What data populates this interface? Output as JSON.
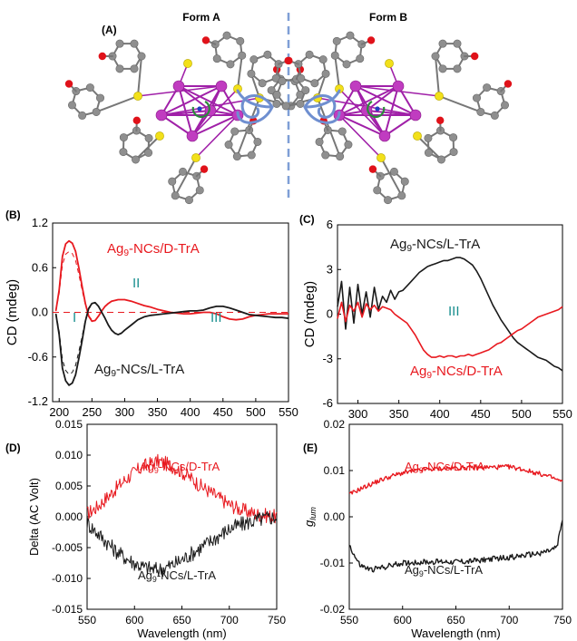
{
  "figure": {
    "panel_labels": [
      "(A)",
      "(B)",
      "(C)",
      "(D)",
      "(E)"
    ],
    "form_a_label": "Form A",
    "form_b_label": "Form B",
    "colors": {
      "red": "#e8191f",
      "black": "#1a1a1a",
      "teal": "#1a8f8f",
      "divider": "#7f9fd6",
      "carbon": "#8f8f8f",
      "oxygen": "#e0121a",
      "sulfur": "#f2e01a",
      "silver": "#c03cc0",
      "bond": "#a020a8"
    }
  },
  "chart_data": [
    {
      "id": "B",
      "type": "line",
      "xlabel": "",
      "ylabel": "CD (mdeg)",
      "xlim": [
        190,
        550
      ],
      "ylim": [
        -1.2,
        1.2
      ],
      "xticks": [
        "200",
        "250",
        "300",
        "350",
        "400",
        "450",
        "500",
        "550"
      ],
      "yticks": [
        "1.2",
        "0.6",
        "0.0",
        "-0.6",
        "-1.2"
      ],
      "annotations": [
        "I",
        "II",
        "III"
      ],
      "series": [
        {
          "name": "Ag9-NCs/D-TrA",
          "name_main": "Ag",
          "name_sub": "9",
          "name_rest": "-NCs/D-TrA",
          "color": "#e8191f",
          "x": [
            195,
            200,
            205,
            210,
            215,
            220,
            225,
            230,
            235,
            240,
            245,
            250,
            255,
            260,
            265,
            270,
            275,
            280,
            285,
            290,
            295,
            300,
            310,
            320,
            330,
            340,
            350,
            360,
            370,
            380,
            390,
            400,
            410,
            420,
            430,
            440,
            450,
            460,
            470,
            480,
            490,
            500,
            510,
            520,
            530,
            540,
            550
          ],
          "y": [
            0.02,
            0.3,
            0.75,
            0.92,
            0.96,
            0.93,
            0.82,
            0.6,
            0.35,
            0.12,
            -0.05,
            -0.12,
            -0.11,
            -0.05,
            0.02,
            0.08,
            0.12,
            0.15,
            0.16,
            0.17,
            0.17,
            0.17,
            0.15,
            0.12,
            0.09,
            0.07,
            0.04,
            0.02,
            0.0,
            -0.01,
            -0.02,
            -0.02,
            -0.01,
            0.0,
            0.0,
            -0.02,
            -0.06,
            -0.09,
            -0.1,
            -0.09,
            -0.06,
            -0.04,
            -0.03,
            -0.02,
            -0.02,
            -0.02,
            -0.02
          ]
        },
        {
          "name": "Ag9-NCs/L-TrA",
          "name_main": "Ag",
          "name_sub": "9",
          "name_rest": "-NCs/L-TrA",
          "color": "#1a1a1a",
          "x": [
            195,
            200,
            205,
            210,
            215,
            220,
            225,
            230,
            235,
            240,
            245,
            250,
            255,
            260,
            265,
            270,
            275,
            280,
            285,
            290,
            295,
            300,
            310,
            320,
            330,
            340,
            350,
            360,
            370,
            380,
            390,
            400,
            410,
            420,
            430,
            440,
            450,
            460,
            470,
            480,
            490,
            500,
            510,
            520,
            530,
            540,
            550
          ],
          "y": [
            -0.02,
            -0.3,
            -0.75,
            -0.92,
            -0.98,
            -0.95,
            -0.84,
            -0.62,
            -0.38,
            -0.12,
            0.05,
            0.12,
            0.13,
            0.08,
            0.0,
            -0.08,
            -0.17,
            -0.24,
            -0.28,
            -0.3,
            -0.28,
            -0.24,
            -0.17,
            -0.1,
            -0.06,
            -0.04,
            -0.03,
            -0.02,
            -0.01,
            0.0,
            0.01,
            0.02,
            0.02,
            0.03,
            0.06,
            0.08,
            0.08,
            0.06,
            0.03,
            0.0,
            -0.03,
            -0.04,
            -0.05,
            -0.06,
            -0.07,
            -0.07,
            -0.08
          ]
        }
      ]
    },
    {
      "id": "C",
      "type": "line",
      "xlabel": "",
      "ylabel": "CD (mdeg)",
      "xlim": [
        275,
        550
      ],
      "ylim": [
        -6,
        6
      ],
      "xticks": [
        "300",
        "350",
        "400",
        "450",
        "500",
        "550"
      ],
      "yticks": [
        "6",
        "3",
        "0",
        "-3",
        "-6"
      ],
      "annotations": [
        "III"
      ],
      "series": [
        {
          "name": "Ag9-NCs/L-TrA",
          "name_main": "Ag",
          "name_sub": "9",
          "name_rest": "-NCs/L-TrA",
          "color": "#1a1a1a",
          "x": [
            275,
            280,
            285,
            290,
            295,
            300,
            305,
            310,
            315,
            320,
            325,
            330,
            335,
            340,
            345,
            350,
            355,
            360,
            365,
            370,
            375,
            380,
            385,
            390,
            395,
            400,
            405,
            410,
            415,
            420,
            425,
            430,
            435,
            440,
            445,
            450,
            455,
            460,
            465,
            470,
            475,
            480,
            485,
            490,
            495,
            500,
            505,
            510,
            515,
            520,
            525,
            530,
            535,
            540,
            545,
            550
          ],
          "y": [
            0.5,
            2.2,
            -1.0,
            1.8,
            -0.6,
            2.0,
            0.0,
            1.5,
            -0.2,
            1.8,
            0.3,
            1.2,
            0.8,
            1.6,
            1.0,
            1.5,
            1.6,
            1.9,
            2.2,
            2.5,
            2.8,
            3.0,
            3.2,
            3.3,
            3.4,
            3.5,
            3.6,
            3.6,
            3.7,
            3.8,
            3.8,
            3.7,
            3.5,
            3.3,
            2.9,
            2.4,
            1.8,
            1.2,
            0.6,
            0.1,
            -0.4,
            -0.8,
            -1.2,
            -1.6,
            -1.9,
            -2.1,
            -2.3,
            -2.5,
            -2.7,
            -2.9,
            -3.0,
            -3.1,
            -3.3,
            -3.5,
            -3.6,
            -3.8
          ]
        },
        {
          "name": "Ag9-NCs/D-TrA",
          "name_main": "Ag",
          "name_sub": "9",
          "name_rest": "-NCs/D-TrA",
          "color": "#e8191f",
          "x": [
            275,
            280,
            285,
            290,
            295,
            300,
            305,
            310,
            315,
            320,
            325,
            330,
            335,
            340,
            345,
            350,
            355,
            360,
            365,
            370,
            375,
            380,
            385,
            390,
            395,
            400,
            405,
            410,
            415,
            420,
            425,
            430,
            435,
            440,
            445,
            450,
            455,
            460,
            465,
            470,
            475,
            480,
            485,
            490,
            495,
            500,
            505,
            510,
            515,
            520,
            525,
            530,
            535,
            540,
            545,
            550
          ],
          "y": [
            -0.3,
            0.8,
            -0.5,
            0.6,
            0.2,
            0.8,
            -0.2,
            0.7,
            0.3,
            0.6,
            0.2,
            0.5,
            0.4,
            0.3,
            0.0,
            -0.2,
            -0.4,
            -0.6,
            -1.0,
            -1.4,
            -1.9,
            -2.4,
            -2.7,
            -2.9,
            -2.9,
            -2.8,
            -2.9,
            -2.8,
            -2.8,
            -2.9,
            -2.8,
            -2.8,
            -2.7,
            -2.8,
            -2.7,
            -2.6,
            -2.5,
            -2.4,
            -2.2,
            -2.0,
            -1.9,
            -1.7,
            -1.5,
            -1.3,
            -1.1,
            -1.0,
            -0.8,
            -0.6,
            -0.4,
            -0.2,
            -0.1,
            0.0,
            0.1,
            0.2,
            0.3,
            0.5
          ]
        }
      ]
    },
    {
      "id": "D",
      "type": "line",
      "xlabel": "Wavelength (nm)",
      "ylabel": "Delta (AC Volt)",
      "xlim": [
        550,
        750
      ],
      "ylim": [
        -0.015,
        0.015
      ],
      "xticks": [
        "550",
        "600",
        "650",
        "700",
        "750"
      ],
      "yticks": [
        "0.015",
        "0.010",
        "0.005",
        "0.000",
        "-0.005",
        "-0.010",
        "-0.015"
      ],
      "series": [
        {
          "name": "Ag9-NCs/D-TrA",
          "name_main": "Ag",
          "name_sub": "9",
          "name_rest": "-NCs/D-TrA",
          "color": "#e8191f",
          "noise": 0.0012,
          "x": [
            550,
            560,
            570,
            580,
            590,
            600,
            610,
            620,
            625,
            630,
            640,
            650,
            660,
            670,
            680,
            690,
            700,
            710,
            720,
            730,
            740,
            750
          ],
          "y": [
            0.0005,
            0.0015,
            0.003,
            0.0045,
            0.006,
            0.0072,
            0.0082,
            0.0088,
            0.009,
            0.0088,
            0.0082,
            0.0073,
            0.0062,
            0.005,
            0.004,
            0.003,
            0.002,
            0.0013,
            0.0008,
            0.0004,
            0.0002,
            0.0
          ]
        },
        {
          "name": "Ag9-NCs/L-TrA",
          "name_main": "Ag",
          "name_sub": "9",
          "name_rest": "-NCs/L-TrA",
          "color": "#1a1a1a",
          "noise": 0.0013,
          "x": [
            550,
            560,
            570,
            580,
            590,
            600,
            610,
            620,
            625,
            630,
            640,
            650,
            660,
            670,
            680,
            690,
            700,
            710,
            720,
            730,
            740,
            750
          ],
          "y": [
            -0.001,
            -0.0025,
            -0.004,
            -0.0055,
            -0.0066,
            -0.0075,
            -0.0082,
            -0.0085,
            -0.0086,
            -0.0084,
            -0.0078,
            -0.007,
            -0.006,
            -0.005,
            -0.004,
            -0.003,
            -0.002,
            -0.0014,
            -0.0009,
            -0.0005,
            -0.0002,
            0.0
          ]
        }
      ]
    },
    {
      "id": "E",
      "type": "line",
      "xlabel": "Wavelength (nm)",
      "ylabel": "g",
      "ylabel_sub": "lum",
      "xlim": [
        550,
        750
      ],
      "ylim": [
        -0.02,
        0.02
      ],
      "xticks": [
        "550",
        "600",
        "650",
        "700",
        "750"
      ],
      "yticks": [
        "0.02",
        "0.01",
        "0.00",
        "-0.01",
        "-0.02"
      ],
      "series": [
        {
          "name": "Ag9-NCs/D-TrA",
          "name_main": "Ag",
          "name_sub": "9",
          "name_rest": "-NCs/D-TrA",
          "color": "#e8191f",
          "noise": 0.0005,
          "x": [
            550,
            560,
            570,
            580,
            590,
            600,
            620,
            640,
            660,
            680,
            700,
            710,
            720,
            730,
            740,
            750
          ],
          "y": [
            0.0048,
            0.006,
            0.007,
            0.008,
            0.0088,
            0.0095,
            0.0102,
            0.0105,
            0.0106,
            0.0107,
            0.0108,
            0.0104,
            0.0098,
            0.0092,
            0.0085,
            0.0075
          ]
        },
        {
          "name": "Ag9-NCs/L-TrA",
          "name_main": "Ag",
          "name_sub": "9",
          "name_rest": "-NCs/L-TrA",
          "color": "#1a1a1a",
          "noise": 0.0006,
          "x": [
            550,
            555,
            560,
            570,
            580,
            590,
            600,
            620,
            640,
            660,
            680,
            700,
            720,
            730,
            740,
            745,
            750
          ],
          "y": [
            -0.006,
            -0.0085,
            -0.0105,
            -0.0115,
            -0.011,
            -0.0105,
            -0.01,
            -0.0098,
            -0.0097,
            -0.0097,
            -0.0092,
            -0.0088,
            -0.0082,
            -0.0078,
            -0.0072,
            -0.0065,
            -0.0005
          ]
        }
      ]
    }
  ]
}
